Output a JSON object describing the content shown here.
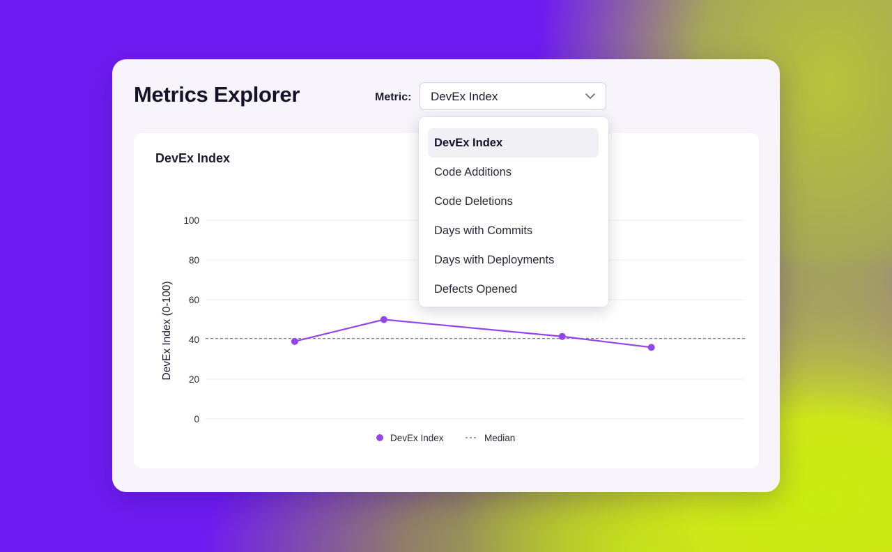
{
  "app": {
    "title": "Metrics Explorer"
  },
  "metric_select": {
    "label": "Metric:",
    "value": "DevEx Index",
    "options": [
      "DevEx Index",
      "Code Additions",
      "Code Deletions",
      "Days with Commits",
      "Days with Deployments",
      "Defects Opened"
    ],
    "selected_index": 0
  },
  "icons": {
    "dropdown": "chevron-down-icon"
  },
  "colors": {
    "series": "#9146ea",
    "median": "#6b6878",
    "grid": "#ececf0",
    "background_purple": "#6e1bf2",
    "background_lime": "#c8ec10"
  },
  "card": {
    "title": "DevEx Index"
  },
  "chart_data": {
    "type": "line",
    "title": "DevEx Index",
    "ylabel": "DevEx Index  (0-100)",
    "xlabel": "",
    "ylim": [
      0,
      100
    ],
    "yticks": [
      0,
      20,
      40,
      60,
      80,
      100
    ],
    "grid": true,
    "legend_position": "bottom-center",
    "series": [
      {
        "name": "DevEx Index",
        "marker": "circle",
        "points": [
          {
            "x": 1,
            "y": 39
          },
          {
            "x": 2,
            "y": 50
          },
          {
            "x": 4,
            "y": 41.5
          },
          {
            "x": 5,
            "y": 36
          }
        ]
      }
    ],
    "reference_lines": [
      {
        "name": "Median",
        "y": 40.5,
        "style": "dashed"
      }
    ]
  }
}
